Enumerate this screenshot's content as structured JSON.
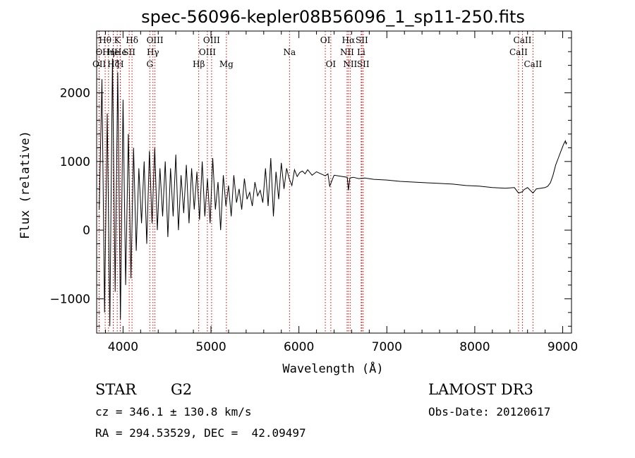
{
  "chart_data": {
    "type": "line",
    "title": "spec-56096-kepler08B56096_1_sp11-250.fits",
    "xlabel": "Wavelength (Å)",
    "ylabel": "Flux (relative)",
    "xlim": [
      3700,
      9100
    ],
    "ylim": [
      -1500,
      2900
    ],
    "xticks": [
      4000,
      5000,
      6000,
      7000,
      8000,
      9000
    ],
    "yticks": [
      -1000,
      0,
      1000,
      2000
    ],
    "xtick_labels": [
      "4000",
      "5000",
      "6000",
      "7000",
      "8000",
      "9000"
    ],
    "ytick_labels": [
      "−1000",
      "0",
      "1000",
      "2000"
    ],
    "line_color": "#000000",
    "marker_color": "#cc0000",
    "series": [
      {
        "name": "flux",
        "x": [
          3730,
          3760,
          3790,
          3820,
          3850,
          3880,
          3910,
          3940,
          3970,
          4000,
          4030,
          4060,
          4090,
          4120,
          4150,
          4180,
          4210,
          4240,
          4270,
          4300,
          4330,
          4360,
          4390,
          4420,
          4450,
          4480,
          4510,
          4540,
          4570,
          4600,
          4630,
          4660,
          4690,
          4720,
          4750,
          4780,
          4810,
          4840,
          4870,
          4900,
          4930,
          4960,
          4990,
          5020,
          5050,
          5080,
          5110,
          5140,
          5170,
          5200,
          5230,
          5260,
          5290,
          5320,
          5350,
          5380,
          5410,
          5440,
          5470,
          5500,
          5530,
          5560,
          5590,
          5620,
          5650,
          5680,
          5710,
          5740,
          5770,
          5800,
          5830,
          5860,
          5890,
          5920,
          5950,
          5980,
          6010,
          6040,
          6070,
          6100,
          6150,
          6200,
          6250,
          6300,
          6330,
          6350,
          6400,
          6450,
          6500,
          6550,
          6563,
          6580,
          6620,
          6680,
          6750,
          6850,
          7000,
          7150,
          7300,
          7450,
          7600,
          7750,
          7900,
          8050,
          8200,
          8350,
          8450,
          8498,
          8542,
          8560,
          8600,
          8662,
          8700,
          8750,
          8800,
          8830,
          8860,
          8890,
          8920,
          8950,
          8980,
          9010,
          9030,
          9040,
          9045
        ],
        "y": [
          300,
          2200,
          -1200,
          1700,
          -1400,
          2500,
          -900,
          2300,
          -1300,
          1900,
          -800,
          1400,
          -700,
          1200,
          -300,
          900,
          100,
          1000,
          -200,
          1150,
          100,
          1200,
          0,
          900,
          200,
          1000,
          -100,
          900,
          200,
          1100,
          0,
          800,
          250,
          950,
          100,
          900,
          300,
          850,
          150,
          1000,
          200,
          750,
          100,
          1050,
          300,
          700,
          0,
          800,
          350,
          650,
          200,
          800,
          400,
          600,
          300,
          750,
          450,
          550,
          350,
          700,
          500,
          580,
          400,
          900,
          350,
          1050,
          200,
          850,
          450,
          980,
          600,
          900,
          750,
          650,
          880,
          780,
          840,
          860,
          820,
          880,
          800,
          850,
          820,
          790,
          820,
          640,
          800,
          790,
          780,
          770,
          580,
          760,
          770,
          750,
          760,
          740,
          730,
          710,
          700,
          690,
          680,
          670,
          650,
          640,
          620,
          610,
          620,
          540,
          560,
          590,
          620,
          540,
          600,
          610,
          620,
          640,
          690,
          800,
          950,
          1050,
          1150,
          1250,
          1300,
          1250,
          1280
        ]
      }
    ],
    "annotations": [
      {
        "label": "O",
        "x": 3727,
        "row": 2
      },
      {
        "label": "OII",
        "x": 3729,
        "row": 3
      },
      {
        "label": "Hθ",
        "x": 3797,
        "row": 1
      },
      {
        "label": "Hη",
        "x": 3835,
        "row": 2
      },
      {
        "label": "Hζ",
        "x": 3889,
        "row": 3
      },
      {
        "label": "He",
        "x": 3889,
        "row": 2
      },
      {
        "label": "K",
        "x": 3934,
        "row": 1
      },
      {
        "label": "H",
        "x": 3968,
        "row": 3
      },
      {
        "label": "He",
        "x": 3970,
        "row": 2
      },
      {
        "label": "SII",
        "x": 4070,
        "row": 2
      },
      {
        "label": "Hδ",
        "x": 4102,
        "row": 1
      },
      {
        "label": "OIII",
        "x": 4363,
        "row": 1
      },
      {
        "label": "Hγ",
        "x": 4340,
        "row": 2
      },
      {
        "label": "G",
        "x": 4304,
        "row": 3
      },
      {
        "label": "Hβ",
        "x": 4861,
        "row": 3
      },
      {
        "label": "OIII",
        "x": 4959,
        "row": 2
      },
      {
        "label": "OIII",
        "x": 5007,
        "row": 1
      },
      {
        "label": "Mg",
        "x": 5175,
        "row": 3
      },
      {
        "label": "Na",
        "x": 5893,
        "row": 2
      },
      {
        "label": "OI",
        "x": 6300,
        "row": 1
      },
      {
        "label": "OI",
        "x": 6363,
        "row": 3
      },
      {
        "label": "NII",
        "x": 6548,
        "row": 2
      },
      {
        "label": "Hα",
        "x": 6563,
        "row": 1
      },
      {
        "label": "NII",
        "x": 6583,
        "row": 3
      },
      {
        "label": "Li",
        "x": 6708,
        "row": 2
      },
      {
        "label": "SII",
        "x": 6716,
        "row": 1
      },
      {
        "label": "SII",
        "x": 6731,
        "row": 3
      },
      {
        "label": "CaII",
        "x": 8498,
        "row": 2
      },
      {
        "label": "CaII",
        "x": 8542,
        "row": 1
      },
      {
        "label": "CaII",
        "x": 8662,
        "row": 3
      }
    ]
  },
  "info": {
    "object_type": "STAR",
    "subclass": "G2",
    "survey": "LAMOST DR3",
    "cz": "cz = 346.1 ± 130.8 km/s",
    "obs_date": "Obs-Date: 20120617",
    "coords": "RA = 294.53529, DEC =  42.09497"
  }
}
